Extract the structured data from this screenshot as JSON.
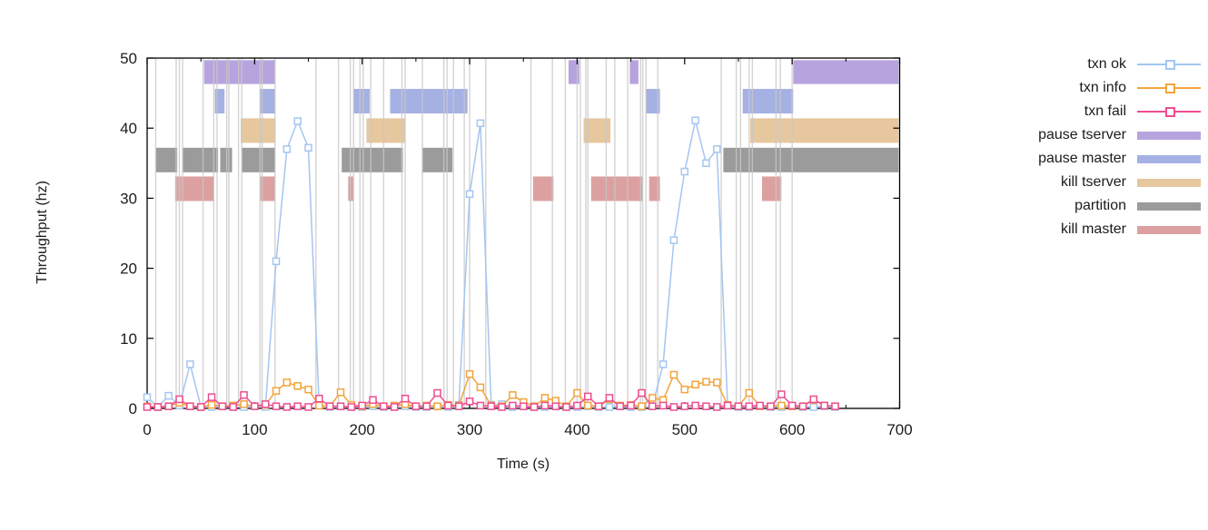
{
  "page": {
    "background": "#ffffff"
  },
  "axes": {
    "xlabel": "Time (s)",
    "ylabel": "Throughput (hz)",
    "x_ticks": [
      0,
      100,
      200,
      300,
      400,
      500,
      600,
      700
    ],
    "x_minor_ticks": [
      50,
      150,
      250,
      350,
      450,
      550,
      650
    ],
    "y_ticks": [
      0,
      10,
      20,
      30,
      40,
      50
    ]
  },
  "legend": {
    "entries": [
      {
        "label": "txn ok",
        "type": "line",
        "color": "#a4c6f1"
      },
      {
        "label": "txn info",
        "type": "line",
        "color": "#f2a43c"
      },
      {
        "label": "txn fail",
        "type": "line",
        "color": "#ee4d8f"
      },
      {
        "label": "pause tserver",
        "type": "band",
        "color": "#b7a3de"
      },
      {
        "label": "pause master",
        "type": "band",
        "color": "#a6b1e3"
      },
      {
        "label": "kill tserver",
        "type": "band",
        "color": "#e7c79e"
      },
      {
        "label": "partition",
        "type": "band",
        "color": "#9b9b9b"
      },
      {
        "label": "kill master",
        "type": "band",
        "color": "#dda0a0"
      }
    ]
  },
  "chart_data": {
    "type": "line",
    "title": "",
    "xlabel": "Time (s)",
    "ylabel": "Throughput (hz)",
    "xlim": [
      0,
      700
    ],
    "ylim": [
      0,
      50
    ],
    "grid": false,
    "legend_position": "right-outside",
    "x": [
      0,
      10,
      20,
      30,
      40,
      50,
      60,
      70,
      80,
      90,
      100,
      110,
      120,
      130,
      140,
      150,
      160,
      170,
      180,
      190,
      200,
      210,
      220,
      230,
      240,
      250,
      260,
      270,
      280,
      290,
      300,
      310,
      320,
      330,
      340,
      350,
      360,
      370,
      380,
      390,
      400,
      410,
      420,
      430,
      440,
      450,
      460,
      470,
      480,
      490,
      500,
      510,
      520,
      530,
      540,
      550,
      560,
      570,
      580,
      590,
      600,
      610,
      620,
      630,
      640
    ],
    "series": [
      {
        "name": "txn ok",
        "color": "#a4c6f1",
        "marker": "open-square",
        "y": [
          1.6,
          0.2,
          1.8,
          0.4,
          6.3,
          0.2,
          0.2,
          0.3,
          0.2,
          0.2,
          0.3,
          0.2,
          21,
          37,
          41,
          37.2,
          0.4,
          0.2,
          0.3,
          0.2,
          0.2,
          0.3,
          0.2,
          0.2,
          0.3,
          0.2,
          0.2,
          0.3,
          0.2,
          0.5,
          30.6,
          40.7,
          0.5,
          0.6,
          0.2,
          0.3,
          0.2,
          0.2,
          0.3,
          0.2,
          0.2,
          0.3,
          0.2,
          0.2,
          0.3,
          0.2,
          0.2,
          0.3,
          6.3,
          24,
          33.8,
          41.1,
          35,
          37,
          0.4,
          0.2,
          0.2,
          0.3,
          0.2,
          0.2,
          0.3,
          0.2,
          0.2,
          0.3,
          0.2
        ]
      },
      {
        "name": "txn info",
        "color": "#f2a43c",
        "marker": "open-square",
        "y": [
          0.3,
          0.2,
          0.3,
          0.8,
          0.3,
          0.2,
          0.5,
          0.3,
          0.4,
          0.6,
          0.3,
          0.5,
          2.5,
          3.7,
          3.2,
          2.7,
          0.4,
          0.3,
          2.3,
          0.5,
          0.3,
          0.6,
          0.3,
          0.4,
          0.6,
          0.3,
          0.4,
          0.3,
          0.5,
          0.4,
          4.9,
          3.0,
          0.4,
          0.3,
          1.9,
          0.9,
          0.3,
          1.5,
          1.1,
          0.3,
          2.2,
          0.4,
          0.3,
          1.3,
          0.4,
          0.5,
          0.3,
          1.5,
          1.2,
          4.8,
          2.7,
          3.4,
          3.8,
          3.7,
          0.5,
          0.3,
          2.2,
          0.3,
          0.3,
          0.4,
          0.3,
          0.3,
          1.2,
          0.4,
          0.3
        ]
      },
      {
        "name": "txn fail",
        "color": "#ee4d8f",
        "marker": "open-square",
        "y": [
          0.2,
          0.2,
          0.3,
          1.3,
          0.3,
          0.2,
          1.6,
          0.3,
          0.2,
          1.9,
          0.3,
          0.6,
          0.3,
          0.2,
          0.3,
          0.2,
          1.4,
          0.3,
          0.3,
          0.2,
          0.4,
          1.2,
          0.3,
          0.2,
          1.4,
          0.3,
          0.3,
          2.2,
          0.4,
          0.3,
          1.0,
          0.4,
          0.3,
          0.2,
          0.4,
          0.3,
          0.2,
          0.4,
          0.3,
          0.2,
          0.4,
          1.7,
          0.3,
          1.5,
          0.3,
          0.4,
          2.2,
          0.3,
          0.4,
          0.2,
          0.3,
          0.4,
          0.3,
          0.2,
          0.4,
          0.3,
          0.3,
          0.4,
          0.3,
          2.0,
          0.4,
          0.3,
          1.3,
          0.4,
          0.3
        ]
      }
    ],
    "event_bands": [
      {
        "name": "pause tserver",
        "color": "#b7a3de",
        "y_range": [
          46.3,
          49.7
        ],
        "segments": [
          [
            53,
            119
          ],
          [
            392,
            402
          ],
          [
            449,
            457
          ],
          [
            601,
            699
          ]
        ]
      },
      {
        "name": "pause master",
        "color": "#a6b1e3",
        "y_range": [
          42.1,
          45.6
        ],
        "segments": [
          [
            63,
            72
          ],
          [
            105,
            119
          ],
          [
            192,
            207
          ],
          [
            226,
            298
          ],
          [
            464,
            477
          ],
          [
            554,
            601
          ]
        ]
      },
      {
        "name": "kill tserver",
        "color": "#e7c79e",
        "y_range": [
          37.9,
          41.4
        ],
        "segments": [
          [
            87,
            119
          ],
          [
            204,
            240
          ],
          [
            406,
            431
          ],
          [
            561,
            699
          ]
        ]
      },
      {
        "name": "partition",
        "color": "#9b9b9b",
        "y_range": [
          33.7,
          37.2
        ],
        "segments": [
          [
            8,
            28
          ],
          [
            33,
            66
          ],
          [
            68,
            79
          ],
          [
            88,
            119
          ],
          [
            181,
            238
          ],
          [
            256,
            284
          ],
          [
            536,
            699
          ]
        ]
      },
      {
        "name": "kill master",
        "color": "#dda0a0",
        "y_range": [
          29.6,
          33.1
        ],
        "segments": [
          [
            26,
            62
          ],
          [
            105,
            119
          ],
          [
            187,
            192
          ],
          [
            359,
            378
          ],
          [
            413,
            461
          ],
          [
            467,
            477
          ],
          [
            572,
            590
          ]
        ]
      }
    ],
    "event_lines": {
      "color": "#c8c8c8",
      "x": [
        8,
        27,
        30,
        33,
        52,
        62,
        65,
        74,
        76,
        85,
        88,
        105,
        107,
        119,
        157,
        178,
        189,
        192,
        198,
        201,
        208,
        220,
        237,
        240,
        256,
        276,
        279,
        285,
        295,
        300,
        315,
        357,
        377,
        389,
        400,
        403,
        408,
        410,
        427,
        435,
        447,
        459,
        461,
        464,
        475,
        534,
        548,
        552,
        560,
        563,
        585,
        589,
        600
      ]
    }
  }
}
